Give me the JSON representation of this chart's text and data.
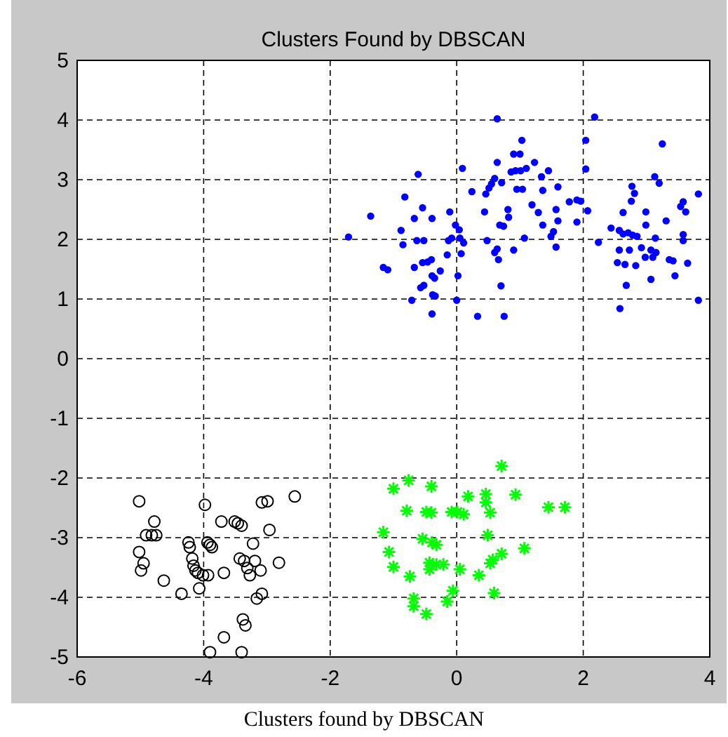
{
  "chart_data": {
    "type": "scatter",
    "title": "Clusters Found by DBSCAN",
    "xlim": [
      -6,
      4
    ],
    "xticks": [
      -6,
      -4,
      -2,
      0,
      2,
      4
    ],
    "ylim": [
      -5,
      5
    ],
    "yticks": [
      -5,
      -4,
      -3,
      -2,
      -1,
      0,
      1,
      2,
      3,
      4,
      5
    ],
    "grid": true,
    "annotations": [
      "Clusters found by DBSCAN"
    ],
    "series": [
      {
        "color": "#0000ff",
        "marker": "point",
        "x": [
          -1.71,
          -1.36,
          -1.16,
          -1.09,
          -0.88,
          -0.85,
          -0.82,
          -0.71,
          -0.67,
          -0.67,
          -0.61,
          -0.63,
          -0.54,
          -0.52,
          -0.57,
          -0.52,
          -0.54,
          -0.46,
          -0.4,
          -0.39,
          -0.39,
          -0.35,
          -0.39,
          -0.38,
          -0.34,
          -0.26,
          -0.15,
          -0.11,
          -0.13,
          -0.08,
          -0.02,
          0.04,
          0.05,
          0.07,
          0.11,
          0.0,
          0.02,
          0.09,
          0.24,
          0.33,
          0.44,
          0.48,
          0.46,
          0.51,
          0.55,
          0.6,
          0.64,
          0.64,
          0.64,
          0.66,
          0.68,
          0.7,
          0.75,
          0.71,
          0.6,
          0.74,
          0.81,
          0.82,
          0.9,
          1.0,
          0.86,
          0.93,
          1.01,
          1.1,
          0.9,
          0.95,
          1.04,
          1.03,
          1.07,
          1.19,
          1.23,
          1.29,
          1.36,
          1.34,
          1.36,
          1.45,
          1.49,
          1.53,
          1.57,
          1.57,
          1.6,
          1.6,
          1.78,
          1.9,
          1.9,
          1.96,
          2.04,
          2.04,
          2.07,
          2.18,
          2.24,
          2.44,
          2.54,
          2.57,
          2.63,
          2.71,
          2.78,
          2.85,
          2.57,
          2.58,
          2.63,
          2.66,
          2.68,
          2.73,
          2.76,
          2.77,
          2.81,
          2.83,
          2.92,
          2.99,
          2.99,
          2.98,
          3.07,
          3.07,
          3.1,
          3.15,
          3.14,
          3.13,
          3.2,
          3.25,
          3.31,
          3.36,
          3.42,
          3.45,
          3.54,
          3.58,
          3.62,
          3.58,
          3.58,
          3.65,
          3.82,
          3.82
        ],
        "values": [
          2.04,
          2.39,
          1.53,
          1.49,
          2.15,
          1.91,
          2.71,
          0.98,
          2.35,
          1.53,
          3.09,
          1.98,
          2.53,
          1.98,
          1.19,
          1.23,
          1.61,
          1.62,
          1.66,
          2.35,
          1.39,
          1.35,
          0.75,
          1.07,
          1.05,
          1.47,
          1.74,
          2.46,
          1.98,
          2.02,
          2.24,
          2.16,
          2.02,
          1.76,
          1.94,
          0.98,
          1.39,
          3.19,
          2.8,
          0.71,
          2.46,
          1.98,
          2.76,
          2.86,
          2.93,
          3.02,
          4.02,
          3.29,
          1.84,
          1.66,
          2.24,
          1.22,
          0.71,
          2.95,
          1.78,
          2.22,
          2.5,
          2.37,
          3.43,
          3.43,
          3.13,
          3.15,
          3.15,
          3.19,
          1.82,
          2.84,
          2.84,
          3.66,
          2.02,
          2.58,
          3.29,
          2.45,
          2.24,
          3.05,
          2.82,
          3.15,
          2.05,
          2.13,
          2.5,
          1.87,
          2.88,
          2.31,
          2.63,
          2.66,
          2.29,
          2.64,
          3.66,
          3.18,
          2.48,
          4.05,
          1.95,
          2.19,
          1.61,
          2.15,
          2.09,
          2.11,
          2.07,
          2.05,
          1.82,
          0.84,
          2.45,
          1.58,
          1.23,
          1.82,
          2.64,
          2.89,
          2.77,
          1.56,
          1.86,
          2.46,
          2.24,
          1.7,
          1.33,
          1.82,
          1.7,
          1.78,
          2.02,
          3.05,
          2.94,
          3.6,
          2.31,
          1.66,
          1.64,
          1.39,
          2.55,
          2.63,
          2.46,
          2.08,
          1.98,
          1.6,
          2.76,
          0.98
        ]
      },
      {
        "color": "#000000",
        "marker": "circle",
        "x": [
          -5.02,
          -4.78,
          -4.91,
          -4.82,
          -4.75,
          -5.02,
          -4.95,
          -4.99,
          -4.63,
          -4.35,
          -4.07,
          -4.24,
          -4.22,
          -4.18,
          -4.16,
          -4.13,
          -4.09,
          -4.01,
          -3.98,
          -3.94,
          -3.9,
          -3.87,
          -3.93,
          -3.72,
          -3.68,
          -3.9,
          -3.68,
          -3.51,
          -3.46,
          -3.4,
          -3.43,
          -3.36,
          -3.31,
          -3.27,
          -3.38,
          -3.34,
          -3.4,
          -3.22,
          -3.19,
          -3.1,
          -3.16,
          -3.08,
          -3.08,
          -2.99,
          -2.96,
          -2.81,
          -2.56
        ],
        "values": [
          -2.39,
          -2.73,
          -2.96,
          -2.96,
          -2.96,
          -3.24,
          -3.43,
          -3.55,
          -3.72,
          -3.94,
          -3.85,
          -3.08,
          -3.16,
          -3.35,
          -3.47,
          -3.55,
          -3.59,
          -3.63,
          -2.45,
          -3.08,
          -3.12,
          -3.16,
          -3.63,
          -2.73,
          -3.59,
          -4.92,
          -4.67,
          -2.73,
          -2.76,
          -2.8,
          -3.35,
          -3.39,
          -3.51,
          -3.63,
          -4.37,
          -4.47,
          -4.92,
          -3.1,
          -3.39,
          -3.55,
          -4.02,
          -3.94,
          -2.41,
          -2.39,
          -2.87,
          -3.42,
          -2.31
        ]
      },
      {
        "color": "#00ff00",
        "marker": "cross",
        "x": [
          0.71,
          -0.76,
          -1.0,
          -0.4,
          0.18,
          0.46,
          0.46,
          0.93,
          -0.79,
          -0.48,
          -0.4,
          -0.08,
          0.01,
          0.11,
          0.53,
          1.45,
          1.71,
          -1.16,
          -0.54,
          -0.39,
          -0.32,
          0.49,
          -1.07,
          0.71,
          0.57,
          0.53,
          1.07,
          -1.0,
          -0.43,
          -0.43,
          -0.32,
          -0.21,
          -0.74,
          0.05,
          0.35,
          -0.06,
          -0.15,
          0.59,
          -0.68,
          -0.68,
          -0.48
        ],
        "values": [
          -1.8,
          -2.04,
          -2.18,
          -2.14,
          -2.31,
          -2.27,
          -2.41,
          -2.28,
          -2.55,
          -2.57,
          -2.58,
          -2.57,
          -2.57,
          -2.61,
          -2.58,
          -2.49,
          -2.49,
          -2.91,
          -3.02,
          -3.08,
          -3.12,
          -2.96,
          -3.24,
          -3.27,
          -3.37,
          -3.43,
          -3.18,
          -3.49,
          -3.42,
          -3.53,
          -3.45,
          -3.45,
          -3.65,
          -3.53,
          -3.63,
          -3.89,
          -4.07,
          -3.93,
          -4.02,
          -4.15,
          -4.28
        ]
      }
    ]
  }
}
